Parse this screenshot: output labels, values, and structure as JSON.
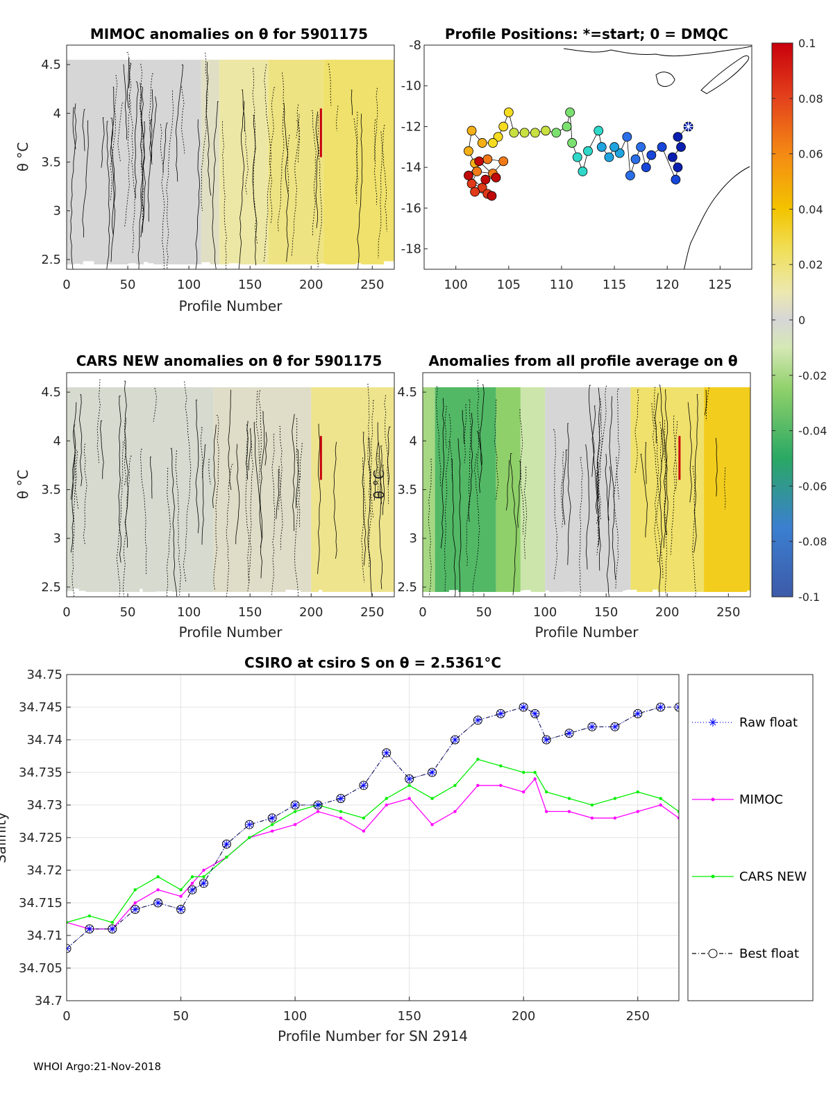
{
  "panels": {
    "mimoc": {
      "title": "MIMOC anomalies on θ  for 5901175",
      "xlabel": "Profile Number",
      "ylabel": "θ °C",
      "xticks": [
        "0",
        "50",
        "100",
        "150",
        "200",
        "250"
      ],
      "yticks": [
        "2.5",
        "3",
        "3.5",
        "4",
        "4.5"
      ]
    },
    "positions": {
      "title": "Profile Positions: *=start; 0 = DMQC",
      "xticks": [
        "100",
        "105",
        "110",
        "115",
        "120",
        "125"
      ],
      "yticks": [
        "-8",
        "-10",
        "-12",
        "-14",
        "-16",
        "-18"
      ]
    },
    "cars": {
      "title": "CARS NEW anomalies on θ for 5901175",
      "xlabel": "Profile Number",
      "ylabel": "θ °C",
      "xticks": [
        "0",
        "50",
        "100",
        "150",
        "200",
        "250"
      ],
      "yticks": [
        "2.5",
        "3",
        "3.5",
        "4",
        "4.5"
      ]
    },
    "allavg": {
      "title": "Anomalies from all profile average on θ",
      "xlabel": "Profile Number",
      "ylabel": "θ °C",
      "xticks": [
        "0",
        "50",
        "100",
        "150",
        "200",
        "250"
      ],
      "yticks": [
        "2.5",
        "3",
        "3.5",
        "4",
        "4.5"
      ]
    }
  },
  "colorbar": {
    "ticks": [
      "0.1",
      "0.08",
      "0.06",
      "0.04",
      "0.02",
      "0",
      "-0.02",
      "-0.04",
      "-0.06",
      "-0.08",
      "-0.1"
    ]
  },
  "footer": "WHOI Argo:21-Nov-2018",
  "chart_data": [
    {
      "type": "heatmap",
      "id": "mimoc",
      "title": "MIMOC anomalies on θ  for 5901175",
      "xlabel": "Profile Number",
      "ylabel": "θ °C",
      "xlim": [
        0,
        268
      ],
      "ylim": [
        2.4,
        4.7
      ],
      "clim": [
        -0.1,
        0.1
      ],
      "segments": [
        {
          "x0": 0,
          "x1": 110,
          "value": 0.0
        },
        {
          "x0": 110,
          "x1": 125,
          "value": 0.005
        },
        {
          "x0": 125,
          "x1": 165,
          "value": 0.012
        },
        {
          "x0": 165,
          "x1": 210,
          "value": 0.018
        },
        {
          "x0": 210,
          "x1": 268,
          "value": 0.022
        }
      ],
      "spike": {
        "x": 208,
        "ylow": 3.55,
        "yhigh": 4.05,
        "value": 0.1
      }
    },
    {
      "type": "scatter",
      "id": "positions",
      "title": "Profile Positions: *=start; 0 = DMQC",
      "xlim": [
        97,
        128
      ],
      "ylim": [
        -19,
        -8
      ],
      "start": [
        122,
        -12
      ],
      "track": [
        [
          122.0,
          -12.0
        ],
        [
          121.0,
          -12.5
        ],
        [
          121.3,
          -13.0
        ],
        [
          120.5,
          -13.5
        ],
        [
          121.0,
          -14.0
        ],
        [
          120.8,
          -14.6
        ],
        [
          119.5,
          -13.0
        ],
        [
          118.5,
          -13.4
        ],
        [
          118.0,
          -14.0
        ],
        [
          117.5,
          -13.0
        ],
        [
          117.0,
          -13.6
        ],
        [
          116.5,
          -14.4
        ],
        [
          116.2,
          -12.5
        ],
        [
          115.5,
          -13.3
        ],
        [
          115.0,
          -13.0
        ],
        [
          114.5,
          -13.5
        ],
        [
          113.8,
          -13.0
        ],
        [
          113.5,
          -12.2
        ],
        [
          112.5,
          -13.2
        ],
        [
          112.0,
          -14.2
        ],
        [
          111.5,
          -13.5
        ],
        [
          111.0,
          -12.8
        ],
        [
          110.8,
          -11.3
        ],
        [
          110.5,
          -12.0
        ],
        [
          109.5,
          -12.3
        ],
        [
          108.5,
          -12.2
        ],
        [
          107.5,
          -12.3
        ],
        [
          106.5,
          -12.3
        ],
        [
          105.5,
          -12.3
        ],
        [
          105.0,
          -11.3
        ],
        [
          104.5,
          -12.0
        ],
        [
          104.0,
          -12.5
        ],
        [
          103.5,
          -12.8
        ],
        [
          102.5,
          -12.8
        ],
        [
          101.5,
          -12.2
        ],
        [
          101.2,
          -13.2
        ],
        [
          101.8,
          -13.8
        ],
        [
          103.0,
          -13.6
        ],
        [
          104.5,
          -13.7
        ],
        [
          103.5,
          -14.3
        ],
        [
          102.0,
          -14.2
        ],
        [
          101.5,
          -14.8
        ],
        [
          102.5,
          -15.0
        ],
        [
          103.0,
          -15.3
        ],
        [
          101.8,
          -15.2
        ],
        [
          102.8,
          -14.6
        ],
        [
          103.8,
          -14.5
        ],
        [
          102.2,
          -13.7
        ],
        [
          101.2,
          -14.4
        ],
        [
          103.4,
          -15.4
        ]
      ]
    },
    {
      "type": "heatmap",
      "id": "cars",
      "title": "CARS NEW anomalies on θ for 5901175",
      "xlabel": "Profile Number",
      "ylabel": "θ °C",
      "xlim": [
        0,
        268
      ],
      "ylim": [
        2.4,
        4.7
      ],
      "clim": [
        -0.1,
        0.1
      ],
      "segments": [
        {
          "x0": 0,
          "x1": 120,
          "value": -0.002
        },
        {
          "x0": 120,
          "x1": 200,
          "value": 0.004
        },
        {
          "x0": 200,
          "x1": 268,
          "value": 0.016
        }
      ],
      "spike": {
        "x": 208,
        "ylow": 3.6,
        "yhigh": 4.05,
        "value": 0.1
      }
    },
    {
      "type": "heatmap",
      "id": "allavg",
      "title": "Anomalies from all profile average on θ",
      "xlabel": "Profile Number",
      "ylabel": "θ °C",
      "xlim": [
        0,
        268
      ],
      "ylim": [
        2.4,
        4.7
      ],
      "clim": [
        -0.1,
        0.1
      ],
      "segments": [
        {
          "x0": 0,
          "x1": 10,
          "value": -0.02
        },
        {
          "x0": 10,
          "x1": 60,
          "value": -0.04
        },
        {
          "x0": 60,
          "x1": 80,
          "value": -0.025
        },
        {
          "x0": 80,
          "x1": 100,
          "value": -0.012
        },
        {
          "x0": 100,
          "x1": 170,
          "value": 0.0
        },
        {
          "x0": 170,
          "x1": 230,
          "value": 0.022
        },
        {
          "x0": 230,
          "x1": 268,
          "value": 0.035
        }
      ],
      "spike": {
        "x": 210,
        "ylow": 3.6,
        "yhigh": 4.05,
        "value": 0.1
      }
    },
    {
      "type": "line",
      "id": "salinity",
      "title": "CSIRO at csiro S on θ = 2.5361°C",
      "xlabel": "Profile Number for SN 2914",
      "ylabel": "Salinity",
      "xlim": [
        0,
        268
      ],
      "ylim": [
        34.7,
        34.75
      ],
      "yticks": [
        34.7,
        34.705,
        34.71,
        34.715,
        34.72,
        34.725,
        34.73,
        34.735,
        34.74,
        34.745,
        34.75
      ],
      "xticks": [
        0,
        50,
        100,
        150,
        200,
        250
      ],
      "ytick_labels": [
        "34.7",
        "34.705",
        "34.71",
        "34.715",
        "34.72",
        "34.725",
        "34.73",
        "34.735",
        "34.74",
        "34.745",
        "34.75"
      ],
      "xtick_labels": [
        "0",
        "50",
        "100",
        "150",
        "200",
        "250"
      ],
      "x": [
        0,
        10,
        20,
        30,
        40,
        50,
        55,
        60,
        70,
        80,
        90,
        100,
        110,
        120,
        130,
        140,
        150,
        160,
        170,
        180,
        190,
        200,
        205,
        210,
        220,
        230,
        240,
        250,
        260,
        268
      ],
      "series": [
        {
          "name": "Raw float",
          "color": "#0000ff",
          "values": [
            34.708,
            34.711,
            34.711,
            34.714,
            34.715,
            34.714,
            34.717,
            34.718,
            34.724,
            34.727,
            34.728,
            34.73,
            34.73,
            34.731,
            34.733,
            34.738,
            34.734,
            34.735,
            34.74,
            34.743,
            34.744,
            34.745,
            34.744,
            34.74,
            34.741,
            34.742,
            34.742,
            34.744,
            34.745,
            34.745
          ]
        },
        {
          "name": "MIMOC",
          "color": "#ff00ff",
          "values": [
            34.712,
            34.711,
            34.711,
            34.715,
            34.717,
            34.716,
            34.718,
            34.72,
            34.722,
            34.725,
            34.726,
            34.727,
            34.729,
            34.728,
            34.726,
            34.73,
            34.731,
            34.727,
            34.729,
            34.733,
            34.733,
            34.732,
            34.734,
            34.729,
            34.729,
            34.728,
            34.728,
            34.729,
            34.73,
            34.728
          ]
        },
        {
          "name": "CARS NEW",
          "color": "#00ee00",
          "values": [
            34.712,
            34.713,
            34.712,
            34.717,
            34.719,
            34.717,
            34.719,
            34.719,
            34.722,
            34.725,
            34.727,
            34.729,
            34.73,
            34.729,
            34.728,
            34.731,
            34.733,
            34.731,
            34.733,
            34.737,
            34.736,
            34.735,
            34.735,
            34.732,
            34.731,
            34.73,
            34.731,
            34.732,
            34.731,
            34.729
          ]
        },
        {
          "name": "Best float",
          "color": "#000000",
          "values": [
            34.708,
            34.711,
            34.711,
            34.714,
            34.715,
            34.714,
            34.717,
            34.718,
            34.724,
            34.727,
            34.728,
            34.73,
            34.73,
            34.731,
            34.733,
            34.738,
            34.734,
            34.735,
            34.74,
            34.743,
            34.744,
            34.745,
            34.744,
            34.74,
            34.741,
            34.742,
            34.742,
            34.744,
            34.745,
            34.745
          ]
        }
      ]
    }
  ]
}
